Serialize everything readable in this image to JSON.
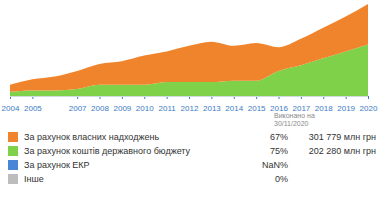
{
  "chart_data": {
    "type": "area",
    "stacked": true,
    "tick_labels": "x",
    "note": "Виконано на\n30/11/2020",
    "x": [
      2004,
      2005,
      2006,
      2007,
      2008,
      2009,
      2010,
      2011,
      2012,
      2013,
      2014,
      2015,
      2016,
      2017,
      2018,
      2019,
      2020
    ],
    "xlim": [
      2004,
      2020
    ],
    "xticks": [
      2004,
      2005,
      2007,
      2008,
      2009,
      2010,
      2011,
      2012,
      2013,
      2014,
      2015,
      2016,
      2017,
      2018,
      2019,
      2020
    ],
    "ylim": [
      0,
      66
    ],
    "yticks": [],
    "series": [
      {
        "name": "За рахунок власних надходжень",
        "color": "#f0842c",
        "share": "67%",
        "amount": "301 779 млн грн",
        "values": [
          5,
          8,
          10,
          13,
          15,
          17,
          21,
          22,
          26,
          29,
          25,
          27,
          17,
          19,
          22,
          25,
          29
        ]
      },
      {
        "name": "За рахунок коштів державного бюджету",
        "color": "#7fd14a",
        "share": "75%",
        "amount": "202 280 млн грн",
        "values": [
          3,
          4,
          4,
          5,
          8,
          8,
          8,
          10,
          10,
          10,
          11,
          11,
          18,
          22,
          27,
          32,
          37
        ]
      },
      {
        "name": "За рахунок ЕКР",
        "color": "#4a86d8",
        "share": "NaN%",
        "values": [
          null,
          null,
          null,
          null,
          null,
          null,
          null,
          null,
          null,
          null,
          null,
          null,
          null,
          null,
          null,
          null,
          null
        ]
      },
      {
        "name": "Інше",
        "color": "#bdbdbd",
        "share": "0%",
        "values": [
          null,
          null,
          null,
          null,
          null,
          null,
          null,
          null,
          null,
          null,
          null,
          null,
          null,
          null,
          null,
          null,
          null
        ]
      }
    ]
  }
}
